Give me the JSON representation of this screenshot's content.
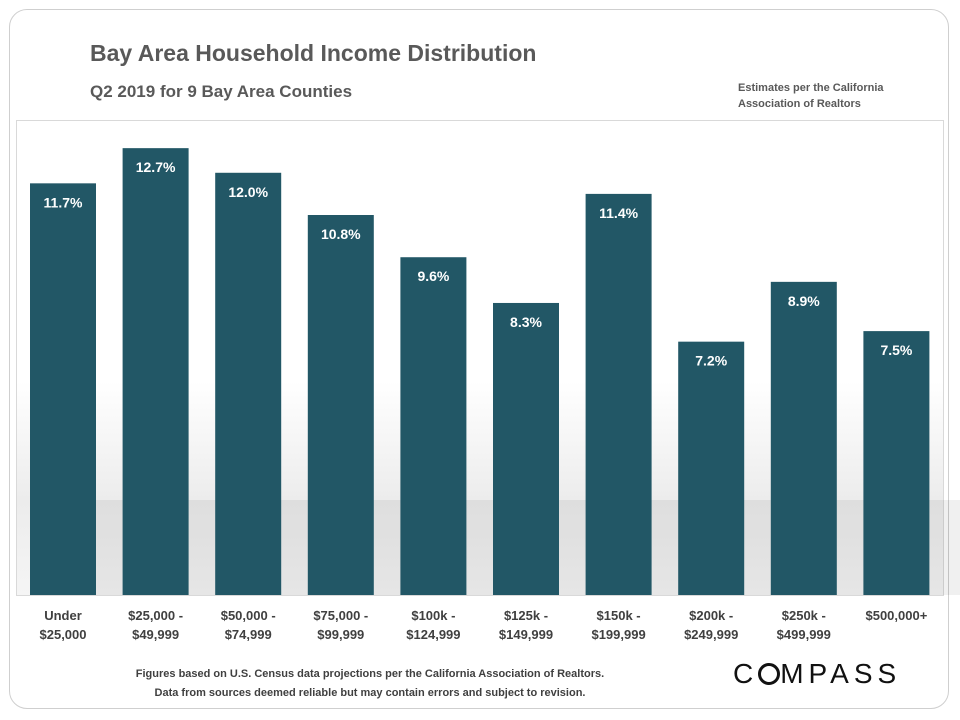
{
  "chart_data": {
    "type": "bar",
    "title": "Bay Area Household Income Distribution",
    "subtitle": "Q2 2019 for 9 Bay Area Counties",
    "source_note": [
      "Estimates per the California",
      "Association of Realtors"
    ],
    "categories": [
      [
        "Under",
        "$25,000"
      ],
      [
        "$25,000 -",
        "$49,999"
      ],
      [
        "$50,000 -",
        "$74,999"
      ],
      [
        "$75,000 -",
        "$99,999"
      ],
      [
        "$100k -",
        "$124,999"
      ],
      [
        "$125k -",
        "$149,999"
      ],
      [
        "$150k -",
        "$199,999"
      ],
      [
        "$200k -",
        "$249,999"
      ],
      [
        "$250k -",
        "$499,999"
      ],
      [
        "$500,000+"
      ]
    ],
    "values": [
      11.7,
      12.7,
      12.0,
      10.8,
      9.6,
      8.3,
      11.4,
      7.2,
      8.9,
      7.5
    ],
    "value_labels": [
      "11.7%",
      "12.7%",
      "12.0%",
      "10.8%",
      "9.6%",
      "8.3%",
      "11.4%",
      "7.2%",
      "8.9%",
      "7.5%"
    ],
    "ylim": [
      0,
      13.5
    ],
    "xlabel": "",
    "ylabel": "",
    "grid": false,
    "bar_color": "#225766",
    "label_color": "#ffffff"
  },
  "footer": {
    "note1": "Figures based on U.S. Census data projections per the California  Association of Realtors.",
    "note2": "Data from sources deemed reliable but may contain errors and subject to revision.",
    "brand_left": "C",
    "brand_right": "MPASS"
  }
}
